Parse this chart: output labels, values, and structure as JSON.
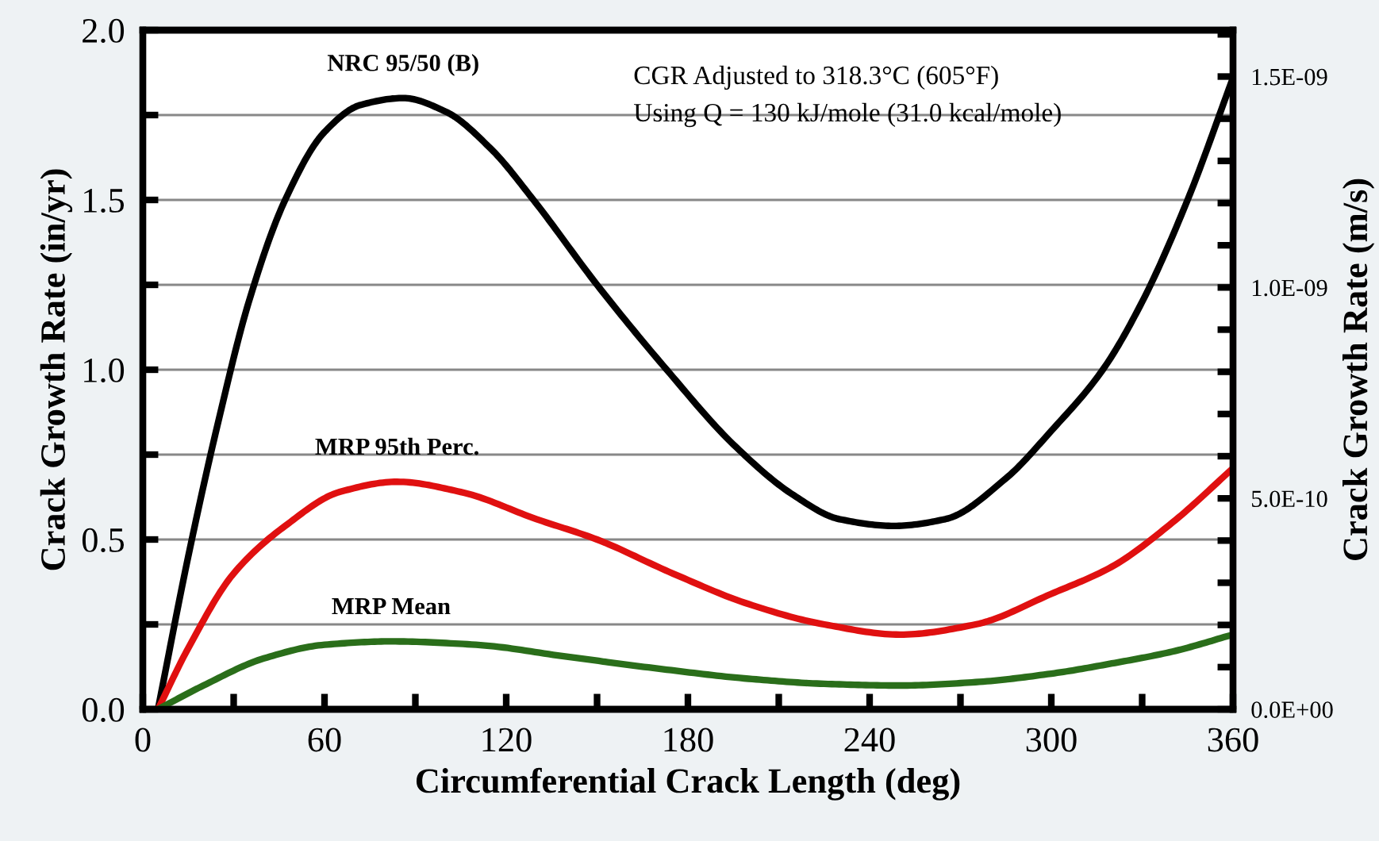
{
  "chart_data": {
    "type": "line",
    "xlabel": "Circumferential Crack Length (deg)",
    "ylabel": "Crack Growth Rate (in/yr)",
    "y2label": "Crack Growth Rate (m/s)",
    "annotations": [
      "CGR Adjusted to 318.3°C (605°F)",
      "Using Q = 130 kJ/mole (31.0 kcal/mole)"
    ],
    "xlim": [
      0,
      360
    ],
    "xticks": [
      0,
      {
        "value": 30,
        "label": null
      },
      60,
      {
        "value": 90,
        "label": null
      },
      120,
      {
        "value": 150,
        "label": null
      },
      180,
      {
        "value": 210,
        "label": null
      },
      240,
      {
        "value": 270,
        "label": null
      },
      300,
      {
        "value": 330,
        "label": null
      },
      360
    ],
    "ylim": [
      0,
      2.0
    ],
    "yticks": [
      {
        "value": 0,
        "label": "0.0"
      },
      {
        "value": 0.25,
        "label": null
      },
      {
        "value": 0.5,
        "label": "0.5"
      },
      {
        "value": 0.75,
        "label": null
      },
      {
        "value": 1.0,
        "label": "1.0"
      },
      {
        "value": 1.25,
        "label": null
      },
      {
        "value": 1.5,
        "label": "1.5"
      },
      {
        "value": 1.75,
        "label": null
      },
      {
        "value": 2.0,
        "label": "2.0"
      }
    ],
    "y2lim": [
      0,
      1.61e-09
    ],
    "y2ticks": [
      {
        "value": 0,
        "label": "0.0E+00"
      },
      {
        "value": 1e-10,
        "label": null
      },
      {
        "value": 2e-10,
        "label": null
      },
      {
        "value": 3e-10,
        "label": null
      },
      {
        "value": 4e-10,
        "label": null
      },
      {
        "value": 5e-10,
        "label": "5.0E-10"
      },
      {
        "value": 6e-10,
        "label": null
      },
      {
        "value": 7e-10,
        "label": null
      },
      {
        "value": 8e-10,
        "label": null
      },
      {
        "value": 9e-10,
        "label": null
      },
      {
        "value": 1e-09,
        "label": "1.0E-09"
      },
      {
        "value": 1.1e-09,
        "label": null
      },
      {
        "value": 1.2e-09,
        "label": null
      },
      {
        "value": 1.3e-09,
        "label": null
      },
      {
        "value": 1.4e-09,
        "label": null
      },
      {
        "value": 1.5e-09,
        "label": "1.5E-09"
      },
      {
        "value": 1.6e-09,
        "label": null
      }
    ],
    "grid": "y",
    "legend": false,
    "marker": "none",
    "line_style": "solid",
    "series": [
      {
        "name": "NRC 95/50 (B)",
        "color": "#000000",
        "x": [
          5,
          15,
          25,
          35,
          47,
          60,
          72,
          86,
          100,
          115,
          129,
          150,
          173,
          195,
          215,
          230,
          248,
          265,
          285,
          300,
          317,
          330,
          345,
          360
        ],
        "values": [
          0.0,
          0.45,
          0.85,
          1.2,
          1.5,
          1.7,
          1.78,
          1.8,
          1.76,
          1.65,
          1.5,
          1.25,
          1.0,
          0.78,
          0.63,
          0.56,
          0.54,
          0.56,
          0.68,
          0.82,
          1.0,
          1.2,
          1.5,
          1.86
        ]
      },
      {
        "name": "MRP 95th Perc.",
        "color": "#e01010",
        "x": [
          5,
          15,
          30,
          47,
          65,
          84,
          105,
          130,
          150,
          175,
          200,
          225,
          250,
          275,
          300,
          320,
          340,
          360
        ],
        "values": [
          0.0,
          0.18,
          0.4,
          0.54,
          0.64,
          0.67,
          0.64,
          0.56,
          0.5,
          0.4,
          0.31,
          0.25,
          0.22,
          0.25,
          0.34,
          0.42,
          0.55,
          0.71
        ]
      },
      {
        "name": "MRP Mean",
        "color": "#2a6e1a",
        "x": [
          5,
          20,
          40,
          60,
          82,
          110,
          140,
          170,
          200,
          225,
          250,
          275,
          300,
          320,
          340,
          360
        ],
        "values": [
          0.0,
          0.07,
          0.15,
          0.19,
          0.2,
          0.19,
          0.155,
          0.12,
          0.09,
          0.075,
          0.07,
          0.08,
          0.105,
          0.135,
          0.17,
          0.22
        ]
      }
    ]
  }
}
